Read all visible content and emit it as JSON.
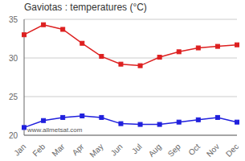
{
  "chart_data": {
    "type": "line",
    "title": "Gaviotas : temperatures (°C)",
    "categories": [
      "Jan",
      "Feb",
      "Mar",
      "Apr",
      "May",
      "Jun",
      "Jul",
      "Aug",
      "Sep",
      "Oct",
      "Nov",
      "Dec"
    ],
    "series": [
      {
        "color": "#dd2020",
        "marker": "square",
        "values": [
          33.0,
          34.3,
          33.7,
          31.9,
          30.2,
          29.2,
          29.0,
          30.1,
          30.8,
          31.3,
          31.5,
          31.7
        ]
      },
      {
        "color": "#2020dd",
        "marker": "square",
        "values": [
          21.0,
          21.9,
          22.3,
          22.5,
          22.3,
          21.5,
          21.4,
          21.4,
          21.7,
          22.0,
          22.3,
          21.7
        ]
      }
    ],
    "ylim": [
      20,
      35
    ],
    "yticks": [
      20,
      25,
      30,
      35
    ],
    "grid": true,
    "annotations": [
      "www.allmetsat.com"
    ]
  }
}
